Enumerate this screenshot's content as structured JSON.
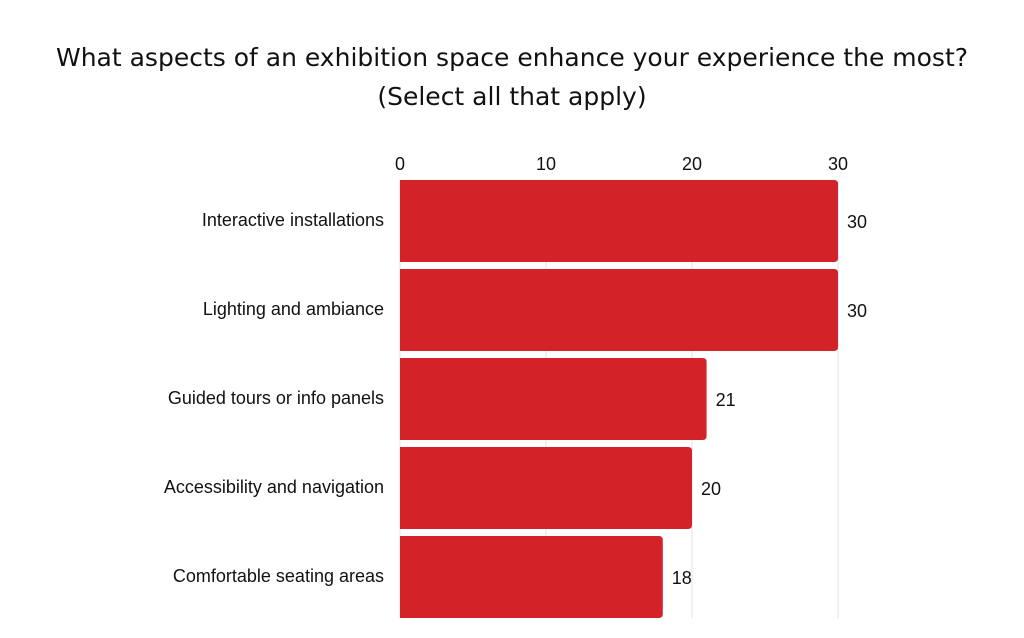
{
  "chart_data": {
    "type": "bar",
    "orientation": "horizontal",
    "title": "What aspects of an exhibition space enhance your experience the most? (Select all that apply)",
    "categories": [
      "Interactive installations",
      "Lighting and ambiance",
      "Guided tours or info panels",
      "Accessibility and navigation",
      "Comfortable seating areas"
    ],
    "values": [
      30,
      30,
      21,
      20,
      18
    ],
    "xlim": [
      0,
      30
    ],
    "x_ticks": [
      "0",
      "10",
      "20",
      "30"
    ],
    "x_axis_position": "top",
    "grid": true,
    "data_labels": true,
    "bar_color": "#d42229",
    "xlabel": "",
    "ylabel": ""
  }
}
